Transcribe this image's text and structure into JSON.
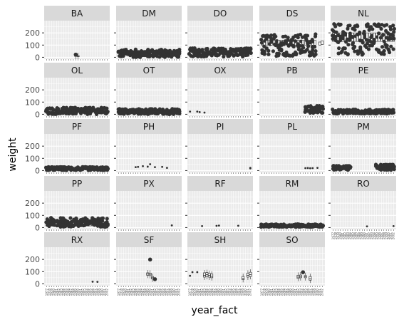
{
  "chart_data": {
    "type": "boxplot",
    "facet_by": "species_id",
    "xlabel": "year_fact",
    "ylabel": "weight",
    "y_ticks": [
      0,
      100,
      200
    ],
    "ylim": [
      -15,
      300
    ],
    "grid": true,
    "years": [
      "1977",
      "1978",
      "1979",
      "1980",
      "1981",
      "1982",
      "1983",
      "1984",
      "1985",
      "1986",
      "1987",
      "1988",
      "1989",
      "1990",
      "1991",
      "1992",
      "1993",
      "1994",
      "1995",
      "1996",
      "1997",
      "1998",
      "1999",
      "2000",
      "2001",
      "2002"
    ],
    "panels": [
      {
        "label": "BA",
        "boxes": [
          {
            "year": "1989",
            "q1": 8,
            "median": 10,
            "q3": 14
          },
          {
            "year": "1990",
            "q1": 6,
            "median": 9,
            "q3": 12
          }
        ],
        "outliers": [
          {
            "year": "1989",
            "value": 22
          }
        ]
      },
      {
        "label": "DM",
        "band": [
          38,
          48
        ],
        "from": "1977",
        "to": "2002",
        "outlier_range": [
          0,
          65
        ]
      },
      {
        "label": "DO",
        "band": [
          42,
          52
        ],
        "from": "1977",
        "to": "2002",
        "outlier_range": [
          5,
          75
        ]
      },
      {
        "label": "DS",
        "band": [
          100,
          140
        ],
        "from": "1977",
        "to": "1999",
        "outlier_range": [
          10,
          190
        ],
        "extra_boxes": [
          {
            "year": "2001",
            "q1": 100,
            "median": 110,
            "q3": 125
          },
          {
            "year": "2002",
            "q1": 105,
            "median": 120,
            "q3": 135
          }
        ]
      },
      {
        "label": "NL",
        "band": [
          130,
          200
        ],
        "from": "1977",
        "to": "2002",
        "outlier_range": [
          20,
          280
        ]
      },
      {
        "label": "OL",
        "band": [
          25,
          35
        ],
        "from": "1977",
        "to": "2002",
        "outlier_range": [
          0,
          55
        ]
      },
      {
        "label": "OT",
        "band": [
          20,
          30
        ],
        "from": "1977",
        "to": "2002",
        "outlier_range": [
          0,
          45
        ]
      },
      {
        "label": "OX",
        "points": [
          {
            "year": "1977",
            "value": 22
          },
          {
            "year": "1980",
            "value": 22
          },
          {
            "year": "1981",
            "value": 18
          },
          {
            "year": "1983",
            "value": 14
          }
        ]
      },
      {
        "label": "PB",
        "band": [
          25,
          40
        ],
        "from": "1995",
        "to": "2002",
        "outlier_range": [
          10,
          70
        ]
      },
      {
        "label": "PE",
        "band": [
          18,
          28
        ],
        "from": "1977",
        "to": "2002",
        "outlier_range": [
          5,
          40
        ]
      },
      {
        "label": "PF",
        "band": [
          6,
          10
        ],
        "from": "1977",
        "to": "2002",
        "outlier_range": [
          2,
          30
        ]
      },
      {
        "label": "PH",
        "points": [
          {
            "year": "1984",
            "value": 28
          },
          {
            "year": "1985",
            "value": 30
          },
          {
            "year": "1987",
            "value": 36
          },
          {
            "year": "1989",
            "value": 32
          },
          {
            "year": "1990",
            "value": 52
          },
          {
            "year": "1992",
            "value": 28
          },
          {
            "year": "1995",
            "value": 30
          },
          {
            "year": "1997",
            "value": 22
          }
        ]
      },
      {
        "label": "PI",
        "points": [
          {
            "year": "2002",
            "value": 18
          },
          {
            "year": "2002",
            "value": 22
          }
        ]
      },
      {
        "label": "PL",
        "points": [
          {
            "year": "1995",
            "value": 20
          },
          {
            "year": "1996",
            "value": 21
          },
          {
            "year": "1997",
            "value": 19
          },
          {
            "year": "1998",
            "value": 20
          },
          {
            "year": "2000",
            "value": 22
          }
        ]
      },
      {
        "label": "PM",
        "band": [
          18,
          26
        ],
        "from": "1977",
        "to": "1984",
        "outlier_range": [
          5,
          40
        ],
        "extra_band": [
          18,
          28
        ],
        "extra_from": "1995",
        "extra_to": "2002",
        "extra_range": [
          5,
          50
        ]
      },
      {
        "label": "PP",
        "band": [
          14,
          22
        ],
        "from": "1977",
        "to": "2002",
        "outlier_range": [
          5,
          80
        ]
      },
      {
        "label": "PX",
        "points": [
          {
            "year": "1999",
            "value": 18
          }
        ]
      },
      {
        "label": "RF",
        "points": [
          {
            "year": "1982",
            "value": 12
          },
          {
            "year": "1988",
            "value": 14
          },
          {
            "year": "1989",
            "value": 16
          },
          {
            "year": "1997",
            "value": 15
          }
        ]
      },
      {
        "label": "RM",
        "band": [
          8,
          12
        ],
        "from": "1977",
        "to": "2002",
        "outlier_range": [
          4,
          28
        ]
      },
      {
        "label": "RO",
        "points": [
          {
            "year": "1991",
            "value": 10
          },
          {
            "year": "2002",
            "value": 12
          }
        ]
      },
      {
        "label": "RX",
        "points": [
          {
            "year": "1996",
            "value": 18
          },
          {
            "year": "1998",
            "value": 16
          }
        ]
      },
      {
        "label": "SF",
        "boxes": [
          {
            "year": "1989",
            "q1": 70,
            "median": 80,
            "q3": 90
          },
          {
            "year": "1990",
            "q1": 68,
            "median": 78,
            "q3": 88
          },
          {
            "year": "1991",
            "q1": 40,
            "median": 50,
            "q3": 60
          }
        ],
        "outliers": [
          {
            "year": "1990",
            "value": 199
          },
          {
            "year": "1992",
            "value": 38
          }
        ]
      },
      {
        "label": "SH",
        "points": [
          {
            "year": "1977",
            "value": 66
          },
          {
            "year": "1978",
            "value": 96
          },
          {
            "year": "1980",
            "value": 96
          }
        ],
        "boxes": [
          {
            "year": "1983",
            "q1": 55,
            "median": 70,
            "q3": 90
          },
          {
            "year": "1984",
            "q1": 60,
            "median": 75,
            "q3": 92
          },
          {
            "year": "1985",
            "q1": 55,
            "median": 70,
            "q3": 85
          },
          {
            "year": "1986",
            "q1": 50,
            "median": 62,
            "q3": 80
          },
          {
            "year": "1999",
            "q1": 35,
            "median": 45,
            "q3": 60
          },
          {
            "year": "2001",
            "q1": 55,
            "median": 70,
            "q3": 88
          },
          {
            "year": "2002",
            "q1": 60,
            "median": 75,
            "q3": 95
          }
        ]
      },
      {
        "label": "SO",
        "boxes": [
          {
            "year": "1992",
            "q1": 45,
            "median": 55,
            "q3": 70
          },
          {
            "year": "1993",
            "q1": 50,
            "median": 60,
            "q3": 72
          },
          {
            "year": "1995",
            "q1": 50,
            "median": 58,
            "q3": 68
          },
          {
            "year": "1997",
            "q1": 30,
            "median": 40,
            "q3": 60
          }
        ],
        "outliers": [
          {
            "year": "1994",
            "value": 95
          }
        ]
      }
    ]
  }
}
